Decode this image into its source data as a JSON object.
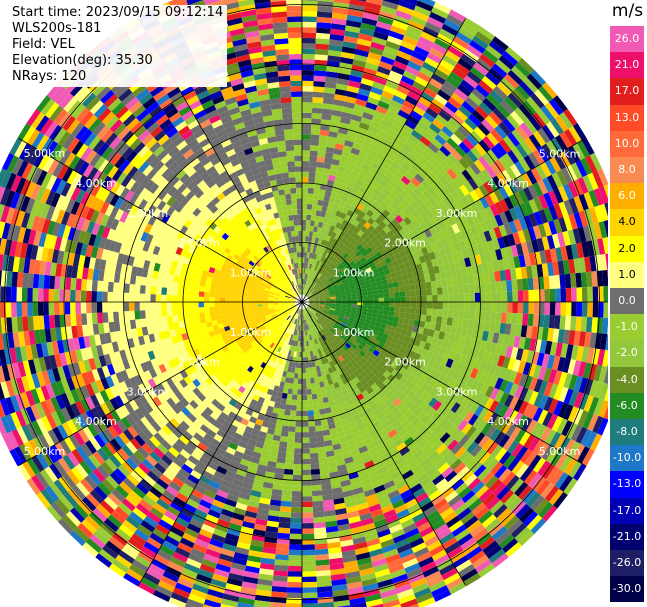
{
  "header": {
    "start_time": "Start time: 2023/09/15 09:12:14",
    "instrument": "WLS200s-181",
    "field": "Field: VEL",
    "elevation": "Elevation(deg): 35.30",
    "nrays": "NRays: 120"
  },
  "colorbar": {
    "unit": "m/s",
    "entries": [
      {
        "label": "26.0",
        "color": "#f05ab4"
      },
      {
        "label": "21.0",
        "color": "#ee0f6a"
      },
      {
        "label": "17.0",
        "color": "#e11d1d"
      },
      {
        "label": "13.0",
        "color": "#ff4b28"
      },
      {
        "label": "10.0",
        "color": "#ff6a3a"
      },
      {
        "label": "8.0",
        "color": "#f98a52"
      },
      {
        "label": "6.0",
        "color": "#ffae00"
      },
      {
        "label": "4.0",
        "color": "#ffd400"
      },
      {
        "label": "2.0",
        "color": "#ffff00"
      },
      {
        "label": "1.0",
        "color": "#ffff80"
      },
      {
        "label": "0.0",
        "color": "#6e6e6e"
      },
      {
        "label": "-1.0",
        "color": "#9acd32"
      },
      {
        "label": "-2.0",
        "color": "#94c83c"
      },
      {
        "label": "-4.0",
        "color": "#6b8e23"
      },
      {
        "label": "-6.0",
        "color": "#228b22"
      },
      {
        "label": "-8.0",
        "color": "#1e7c7c"
      },
      {
        "label": "-10.0",
        "color": "#1e78c8"
      },
      {
        "label": "-13.0",
        "color": "#0000ff"
      },
      {
        "label": "-17.0",
        "color": "#0000b4"
      },
      {
        "label": "-21.0",
        "color": "#00006e"
      },
      {
        "label": "-26.0",
        "color": "#1e1e64"
      },
      {
        "label": "-30.0",
        "color": "#000046"
      }
    ]
  },
  "chart_data": {
    "type": "ppi",
    "rings_km": [
      1,
      2,
      3,
      4,
      5
    ],
    "ring_labels": [
      "1.00km",
      "2.00km",
      "3.00km",
      "4.00km",
      "5.00km"
    ],
    "max_range_km": 5.5,
    "azimuth_lines_deg": [
      0,
      30,
      60,
      90,
      120,
      150,
      180,
      210,
      240,
      270,
      300,
      330
    ],
    "nrays": 120,
    "field": "VEL",
    "units": "m/s",
    "vmin": -30,
    "vmax": 26,
    "pattern": {
      "toward_west_m_s": 4.0,
      "toward_east_m_s": -4.0,
      "noise_beyond_km": 3.3
    }
  }
}
